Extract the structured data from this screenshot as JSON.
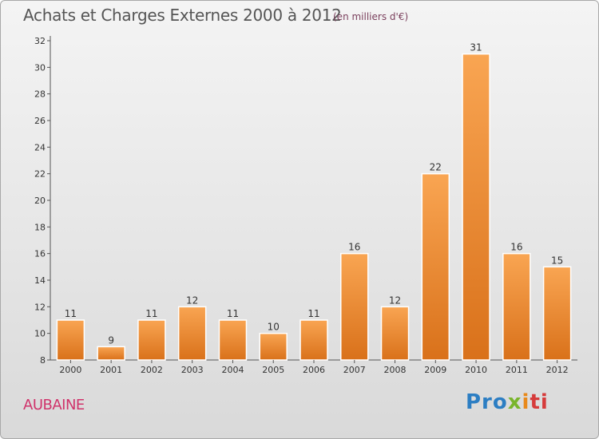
{
  "header": {
    "title": "Achats et Charges Externes 2000 à 2012",
    "subtitle": "(en milliers d'€)"
  },
  "footer": {
    "commune": "AUBAINE",
    "logo": {
      "p1": "Pro",
      "p2": "x",
      "p3": "i",
      "p4": "ti"
    }
  },
  "chart_data": {
    "type": "bar",
    "title": "Achats et Charges Externes 2000 à 2012",
    "subtitle": "(en milliers d'€)",
    "xlabel": "",
    "ylabel": "",
    "categories": [
      "2000",
      "2001",
      "2002",
      "2003",
      "2004",
      "2005",
      "2006",
      "2007",
      "2008",
      "2009",
      "2010",
      "2011",
      "2012"
    ],
    "values": [
      11,
      9,
      11,
      12,
      11,
      10,
      11,
      16,
      12,
      22,
      31,
      16,
      15
    ],
    "ylim": [
      8,
      32
    ],
    "yticks": [
      8,
      10,
      12,
      14,
      16,
      18,
      20,
      22,
      24,
      26,
      28,
      30,
      32
    ],
    "grid": false,
    "legend": "none",
    "bar_color": "#f0862a",
    "data_labels": true
  }
}
